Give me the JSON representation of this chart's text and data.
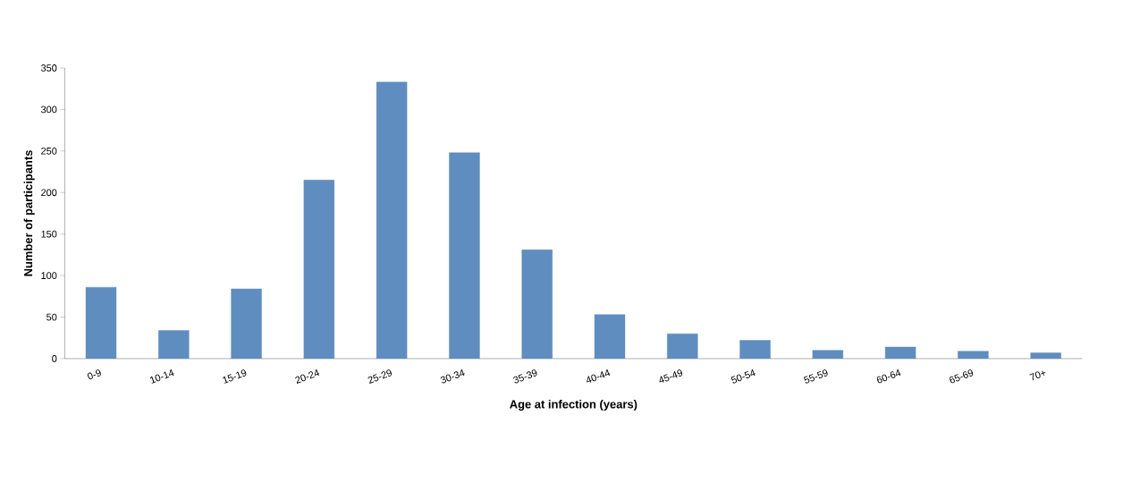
{
  "chart_data": {
    "type": "bar",
    "xlabel": "Age at infection (years)",
    "ylabel": "Number of participants",
    "categories": [
      "0-9",
      "10-14",
      "15-19",
      "20-24",
      "25-29",
      "30-34",
      "35-39",
      "40-44",
      "45-49",
      "50-54",
      "55-59",
      "60-64",
      "65-69",
      "70+"
    ],
    "values": [
      86,
      34,
      84,
      215,
      333,
      248,
      131,
      53,
      30,
      22,
      10,
      14,
      9,
      7
    ],
    "color": "#5f8dbf",
    "ylim": [
      0,
      350
    ],
    "yticks": [
      0,
      50,
      100,
      150,
      200,
      250,
      300,
      350
    ],
    "grid": false
  }
}
